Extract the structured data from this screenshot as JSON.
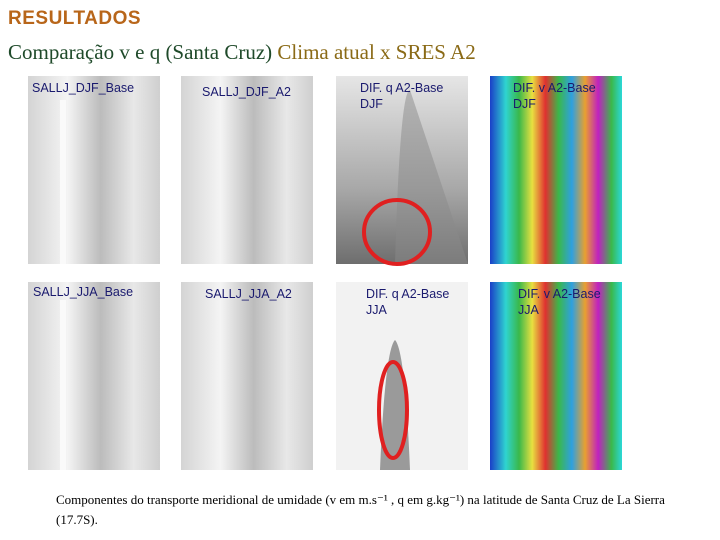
{
  "header": {
    "kicker": "RESULTADOS",
    "title_part1": "Comparação v e q (Santa Cruz)",
    "title_part2": "Clima atual x SRES A2"
  },
  "panels": [
    {
      "label": "SALLJ_DJF_Base"
    },
    {
      "label": "SALLJ_DJF_A2"
    },
    {
      "label": "DIF. q A2-Base DJF"
    },
    {
      "label": "DIF. v A2-Base DJF"
    },
    {
      "label": "SALLJ_JJA_Base"
    },
    {
      "label": "SALLJ_JJA_A2"
    },
    {
      "label": "DIF. q A2-Base JJA"
    },
    {
      "label": "DIF. v A2-Base JJA"
    }
  ],
  "caption": "Componentes do transporte meridional de umidade (v em m.s⁻¹ , q em g.kg⁻¹) na latitude de Santa Cruz de La Sierra (17.7S)."
}
